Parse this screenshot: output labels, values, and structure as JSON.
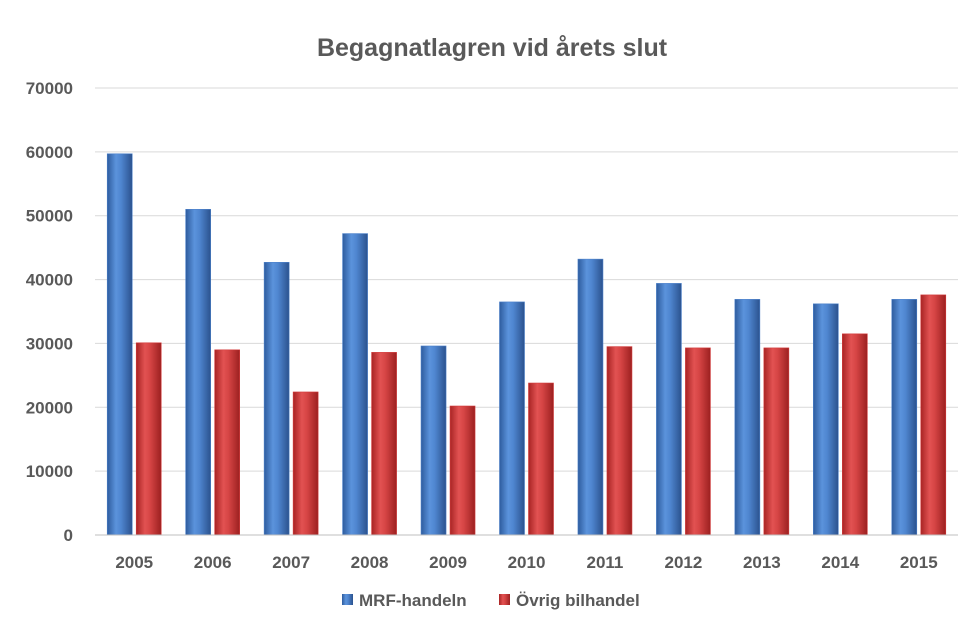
{
  "chart_data": {
    "type": "bar",
    "title": "Begagnatlagren vid årets slut",
    "categories": [
      "2005",
      "2006",
      "2007",
      "2008",
      "2009",
      "2010",
      "2011",
      "2012",
      "2013",
      "2014",
      "2015"
    ],
    "series": [
      {
        "name": "MRF-handeln",
        "values": [
          59700,
          51000,
          42700,
          47200,
          29600,
          36500,
          43200,
          39400,
          36900,
          36200,
          36900
        ],
        "color": "#4A7FC9"
      },
      {
        "name": "Övrig bilhandel",
        "values": [
          30100,
          29000,
          22400,
          28600,
          20200,
          23800,
          29500,
          29300,
          29300,
          31500,
          37600
        ],
        "color": "#D23A3A"
      }
    ],
    "ylim": [
      0,
      70000
    ],
    "yticks": [
      0,
      10000,
      20000,
      30000,
      40000,
      50000,
      60000,
      70000
    ],
    "xlabel": "",
    "ylabel": "",
    "grid": true,
    "legend_position": "bottom"
  }
}
